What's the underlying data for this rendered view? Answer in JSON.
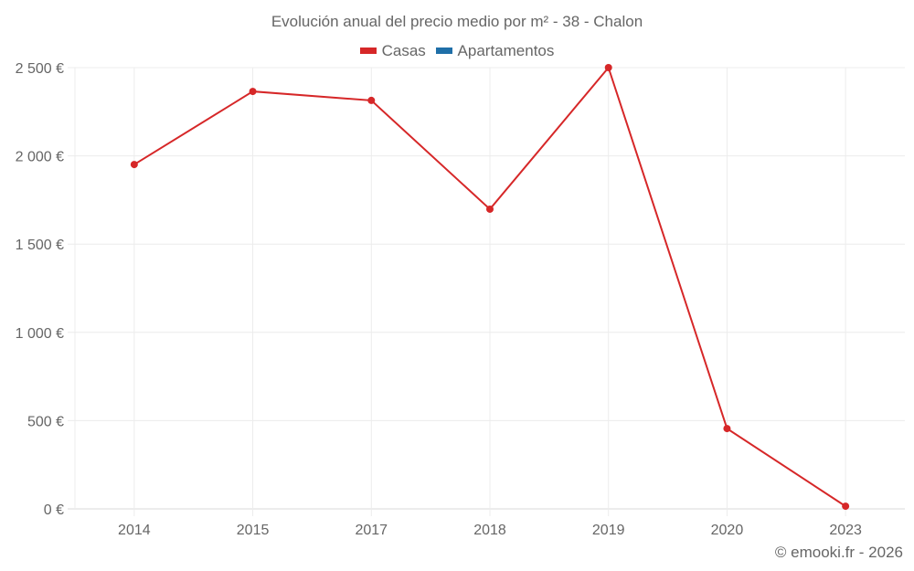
{
  "chart_data": {
    "type": "line",
    "title": "Evolución anual del precio medio por m² - 38 - Chalon",
    "categories": [
      "2014",
      "2015",
      "2017",
      "2018",
      "2019",
      "2020",
      "2023"
    ],
    "series": [
      {
        "name": "Casas",
        "color": "#d62728",
        "values": [
          1951,
          2365,
          2314,
          1698,
          2500,
          455,
          15
        ]
      },
      {
        "name": "Apartamentos",
        "color": "#1f6fa8",
        "values": []
      }
    ],
    "xlabel": "",
    "ylabel": "",
    "ylim": [
      0,
      2500
    ],
    "yticks": [
      "0 €",
      "500 €",
      "1 000 €",
      "1 500 €",
      "2 000 €",
      "2 500 €"
    ],
    "grid": true,
    "legend_position": "top"
  },
  "footer": "© emooki.fr - 2026"
}
